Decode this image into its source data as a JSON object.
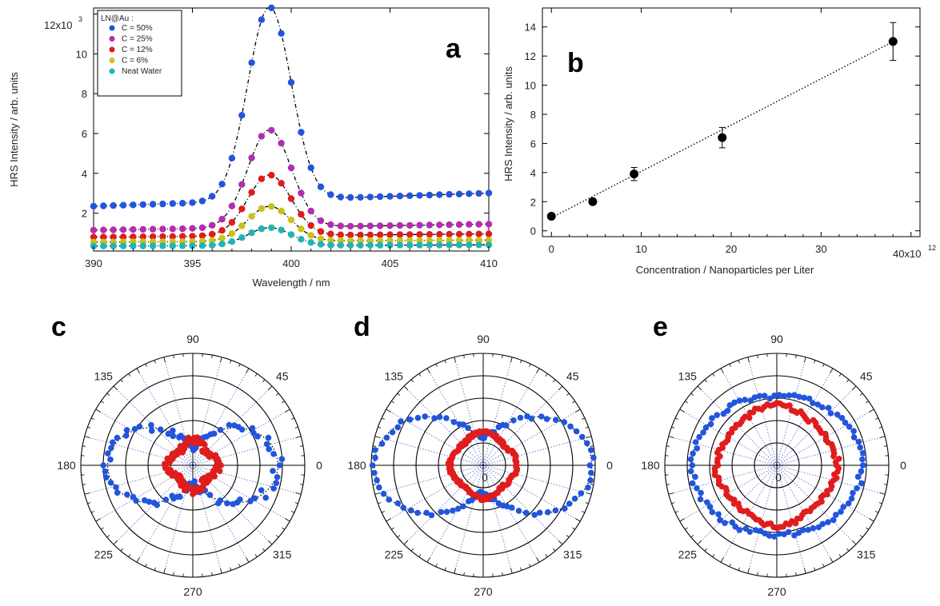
{
  "chart_data": [
    {
      "panel": "a",
      "type": "scatter",
      "xlabel": "Wavelength  / nm",
      "ylabel": "HRS Intensity  / arb. units",
      "xlim": [
        390,
        410
      ],
      "ylim": [
        0.1,
        12.3
      ],
      "y_scale_label": "12x10",
      "y_scale_exp": "3",
      "x_ticks": [
        "390",
        "395",
        "400",
        "405",
        "410"
      ],
      "y_ticks": [
        "2",
        "4",
        "6",
        "8",
        "10"
      ],
      "legend_title": "LN@Au :",
      "legend_position": "top-left",
      "fit_curves": "dashed black Gaussian fits through each series",
      "colors": {
        "s50": "#2255dd",
        "s25": "#b22db0",
        "s12": "#e01c1c",
        "s6": "#c9c21a",
        "water": "#22b4b4"
      },
      "series": [
        {
          "name": "C = 50%",
          "baseline": 2.35,
          "slope": 0.033,
          "amplitude": 9.7,
          "center": 398.9,
          "sigma": 1.1
        },
        {
          "name": "C = 25%",
          "baseline": 1.15,
          "slope": 0.015,
          "amplitude": 4.9,
          "center": 398.9,
          "sigma": 1.1
        },
        {
          "name": "C = 12%",
          "baseline": 0.8,
          "slope": 0.008,
          "amplitude": 3.05,
          "center": 398.9,
          "sigma": 1.1
        },
        {
          "name": "C = 6%",
          "baseline": 0.55,
          "slope": 0.005,
          "amplitude": 1.75,
          "center": 398.9,
          "sigma": 1.1
        },
        {
          "name": "Neat Water",
          "baseline": 0.35,
          "slope": 0.003,
          "amplitude": 0.9,
          "center": 398.9,
          "sigma": 1.1
        }
      ]
    },
    {
      "panel": "b",
      "type": "scatter",
      "xlabel": "Concentration  / Nanoparticles per Liter",
      "ylabel": "HRS Intensity  / arb. units",
      "xlim": [
        -1,
        41
      ],
      "ylim": [
        -0.4,
        15.3
      ],
      "x_ticks": [
        "0",
        "10",
        "20",
        "30"
      ],
      "x_scale_label": "40x10",
      "x_scale_exp": "12",
      "y_ticks": [
        "0",
        "2",
        "4",
        "6",
        "8",
        "10",
        "12",
        "14"
      ],
      "points": [
        {
          "x": 0,
          "y": 1.0,
          "err": 0
        },
        {
          "x": 4.6,
          "y": 2.0,
          "err": 0
        },
        {
          "x": 9.2,
          "y": 3.9,
          "err": 0.45
        },
        {
          "x": 19.0,
          "y": 6.4,
          "err": 0.7
        },
        {
          "x": 38.0,
          "y": 13.0,
          "err": 1.3
        }
      ],
      "fit": {
        "intercept": 0.9,
        "slope": 0.318,
        "style": "dotted"
      }
    },
    {
      "panel": "c",
      "type": "polar",
      "angle_labels": [
        "0",
        "45",
        "90",
        "135",
        "180",
        "225",
        "270",
        "315"
      ],
      "center_label": "",
      "rings": 5,
      "series": [
        {
          "color": "#2255dd",
          "shape": "lobes",
          "A": 3.1,
          "B": 0.7,
          "C": 0.2,
          "noise": 0.25
        },
        {
          "color": "#e01c1c",
          "shape": "ring",
          "A": 1.0,
          "B": 0.0,
          "C": 0.15,
          "noise": 0.15
        }
      ]
    },
    {
      "panel": "d",
      "type": "polar",
      "angle_labels": [
        "0",
        "45",
        "90",
        "135",
        "180",
        "225",
        "270",
        "315"
      ],
      "center_label": "0",
      "rings": 5,
      "series": [
        {
          "color": "#2255dd",
          "shape": "lobes",
          "A": 3.9,
          "B": 0.95,
          "C": 0.3,
          "noise": 0.12
        },
        {
          "color": "#e01c1c",
          "shape": "ring",
          "A": 1.4,
          "B": 0.0,
          "C": 0.1,
          "noise": 0.08
        }
      ]
    },
    {
      "panel": "e",
      "type": "polar",
      "angle_labels": [
        "0",
        "45",
        "90",
        "135",
        "180",
        "225",
        "270",
        "315"
      ],
      "center_label": "0",
      "rings": 5,
      "series": [
        {
          "color": "#2255dd",
          "shape": "ellipse",
          "A": 3.8,
          "B": 3.1,
          "C": 0,
          "noise": 0.12
        },
        {
          "color": "#e01c1c",
          "shape": "ring",
          "A": 2.6,
          "B": 0.0,
          "C": 0.1,
          "noise": 0.12
        }
      ]
    }
  ]
}
